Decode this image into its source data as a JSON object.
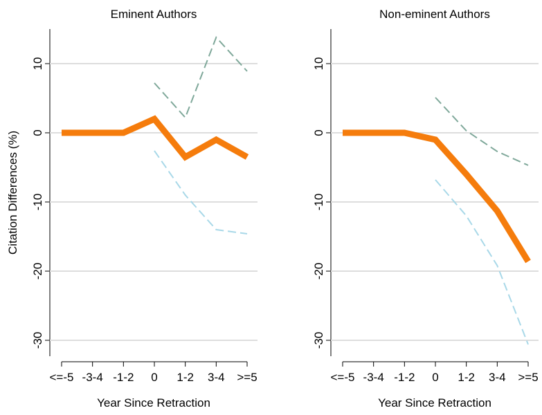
{
  "chart_data": [
    {
      "type": "line",
      "title": "Eminent Authors",
      "x_label": "Year Since Retraction",
      "y_label": "Citation Differences (%)",
      "categories": [
        "<=-5",
        "-3-4",
        "-1-2",
        "0",
        "1-2",
        "3-4",
        ">=5"
      ],
      "series": [
        {
          "color": "#7fa89a",
          "dashed": true,
          "width": 2,
          "values": [
            null,
            null,
            null,
            7.2,
            2.2,
            13.8,
            8.9
          ]
        },
        {
          "color": "#a8d8e8",
          "dashed": true,
          "width": 2,
          "values": [
            null,
            null,
            null,
            -2.6,
            -9,
            -14,
            -14.6
          ]
        },
        {
          "color": "#f57c0c",
          "dashed": false,
          "width": 9,
          "values": [
            0,
            0,
            0,
            2,
            -3.5,
            -1,
            -3.5
          ]
        }
      ],
      "ylim": [
        -32.3,
        15
      ],
      "yticks": [
        10,
        0,
        -10,
        -20,
        -30
      ],
      "grid": true
    },
    {
      "type": "line",
      "title": "Non-eminent Authors",
      "x_label": "Year Since Retraction",
      "categories": [
        "<=-5",
        "-3-4",
        "-1-2",
        "0",
        "1-2",
        "3-4",
        ">=5"
      ],
      "series": [
        {
          "color": "#7fa89a",
          "dashed": true,
          "width": 2,
          "values": [
            null,
            null,
            null,
            5.1,
            0.3,
            -2.7,
            -4.7
          ]
        },
        {
          "color": "#a8d8e8",
          "dashed": true,
          "width": 2,
          "values": [
            null,
            null,
            null,
            -6.8,
            -12,
            -19.2,
            -30.6
          ]
        },
        {
          "color": "#f57c0c",
          "dashed": false,
          "width": 9,
          "values": [
            0,
            0,
            0,
            -1,
            -6,
            -11.3,
            -18.6
          ]
        }
      ],
      "ylim": [
        -32.3,
        15
      ],
      "yticks": [
        10,
        0,
        -10,
        -20,
        -30
      ],
      "grid": true
    }
  ]
}
